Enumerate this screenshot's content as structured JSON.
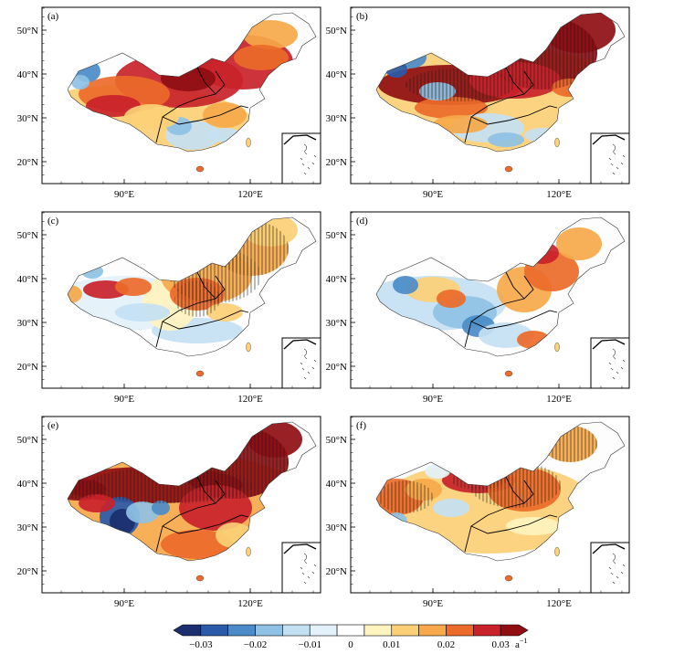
{
  "panels": [
    {
      "label": "(a)",
      "pattern": "a"
    },
    {
      "label": "(b)",
      "pattern": "b"
    },
    {
      "label": "(c)",
      "pattern": "c"
    },
    {
      "label": "(d)",
      "pattern": "d"
    },
    {
      "label": "(e)",
      "pattern": "e"
    },
    {
      "label": "(f)",
      "pattern": "f"
    }
  ],
  "axes": {
    "lat_ticks": [
      "50°N",
      "40°N",
      "30°N",
      "20°N"
    ],
    "lon_ticks": [
      "90°E",
      "120°E"
    ]
  },
  "colorbar": {
    "tick_labels": [
      "−0.03",
      "−0.02",
      "−0.01",
      "0",
      "0.01",
      "0.02",
      "0.03"
    ],
    "unit": "a",
    "unit_exponent": "−1",
    "colors": [
      "#1b2f6e",
      "#2a5aa8",
      "#4b8cc8",
      "#8fc1e4",
      "#c4e1f3",
      "#e3f1fa",
      "#ffffff",
      "#fff3bf",
      "#fcd076",
      "#f6a84a",
      "#ec6a2a",
      "#c9222a",
      "#8f0e12"
    ]
  }
}
